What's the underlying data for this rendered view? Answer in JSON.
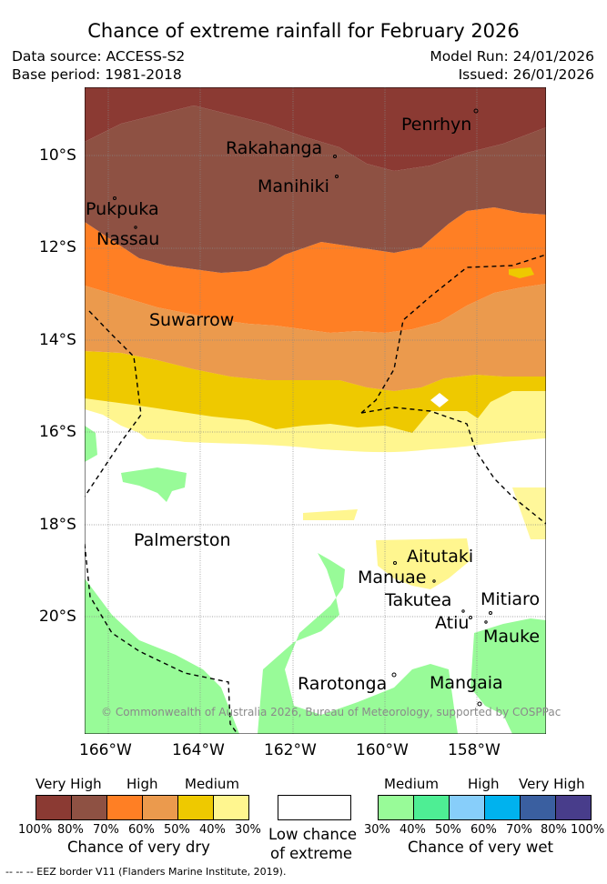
{
  "title": "Chance of extreme rainfall for February 2026",
  "data_source": "Data source: ACCESS-S2",
  "base_period": "Base period: 1981-2018",
  "model_run": "Model Run: 24/01/2026",
  "issued": "Issued: 26/01/2026",
  "map": {
    "lat_ticks": [
      "10°S",
      "12°S",
      "14°S",
      "16°S",
      "18°S",
      "20°S"
    ],
    "lon_ticks": [
      "166°W",
      "164°W",
      "162°W",
      "160°W",
      "158°W"
    ],
    "places": [
      "Penrhyn",
      "Rakahanga",
      "Manihiki",
      "Pukpuka",
      "Nassau",
      "Suwarrow",
      "Palmerston",
      "Aitutaki",
      "Manuae",
      "Takutea",
      "Mitiaro",
      "Atiu",
      "Mauke",
      "Rarotonga",
      "Mangaia"
    ],
    "copyright": "© Commonwealth of Australia 2026, Bureau of Meteorology, supported by COSPPac"
  },
  "legend": {
    "dry": {
      "levels": [
        "Very High",
        "High",
        "Medium"
      ],
      "colors": [
        "#8b3a33",
        "#8e5143",
        "#ff7f24",
        "#eb9a4d",
        "#eec900",
        "#fff68f"
      ],
      "percents": [
        "100%",
        "80%",
        "70%",
        "60%",
        "50%",
        "40%",
        "30%"
      ],
      "caption": "Chance of very dry"
    },
    "neutral": {
      "color": "#ffffff",
      "caption_line1": "Low chance",
      "caption_line2": "of extreme"
    },
    "wet": {
      "levels": [
        "Medium",
        "High",
        "Very High"
      ],
      "colors": [
        "#98fb98",
        "#4eee94",
        "#87cefa",
        "#00b2ee",
        "#3a5fa0",
        "#483d8b"
      ],
      "percents": [
        "30%",
        "40%",
        "50%",
        "60%",
        "70%",
        "80%",
        "100%"
      ],
      "caption": "Chance of very wet"
    }
  },
  "eez_note": "--  --  -- EEZ border V11 (Flanders Marine Institute, 2019)."
}
